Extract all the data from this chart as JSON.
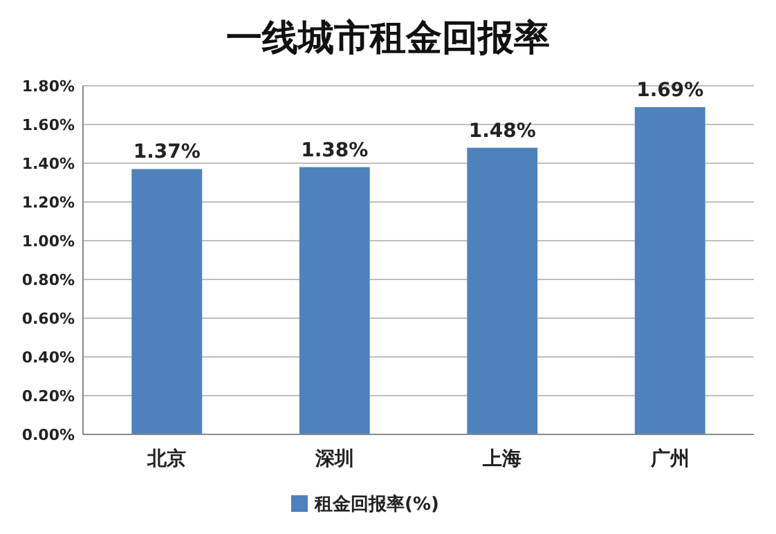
{
  "chart_data": {
    "type": "bar",
    "title": "一线城市租金回报率",
    "categories": [
      "北京",
      "深圳",
      "上海",
      "广州"
    ],
    "series": [
      {
        "name": "租金回报率(%)",
        "color": "#4f81bd",
        "values": [
          1.37,
          1.38,
          1.48,
          1.69
        ],
        "value_labels": [
          "1.37%",
          "1.38%",
          "1.48%",
          "1.69%"
        ]
      }
    ],
    "ylim": [
      0,
      1.8
    ],
    "yticks": [
      {
        "value": 0,
        "label": "0.00%"
      },
      {
        "value": 0.2,
        "label": "0.20%"
      },
      {
        "value": 0.4,
        "label": "0.40%"
      },
      {
        "value": 0.6,
        "label": "0.60%"
      },
      {
        "value": 0.8,
        "label": "0.80%"
      },
      {
        "value": 1,
        "label": "1.00%"
      },
      {
        "value": 1.2,
        "label": "1.20%"
      },
      {
        "value": 1.4,
        "label": "1.40%"
      },
      {
        "value": 1.6,
        "label": "1.60%"
      },
      {
        "value": 1.8,
        "label": "1.80%"
      }
    ],
    "grid": "y",
    "legend": "bottom"
  }
}
